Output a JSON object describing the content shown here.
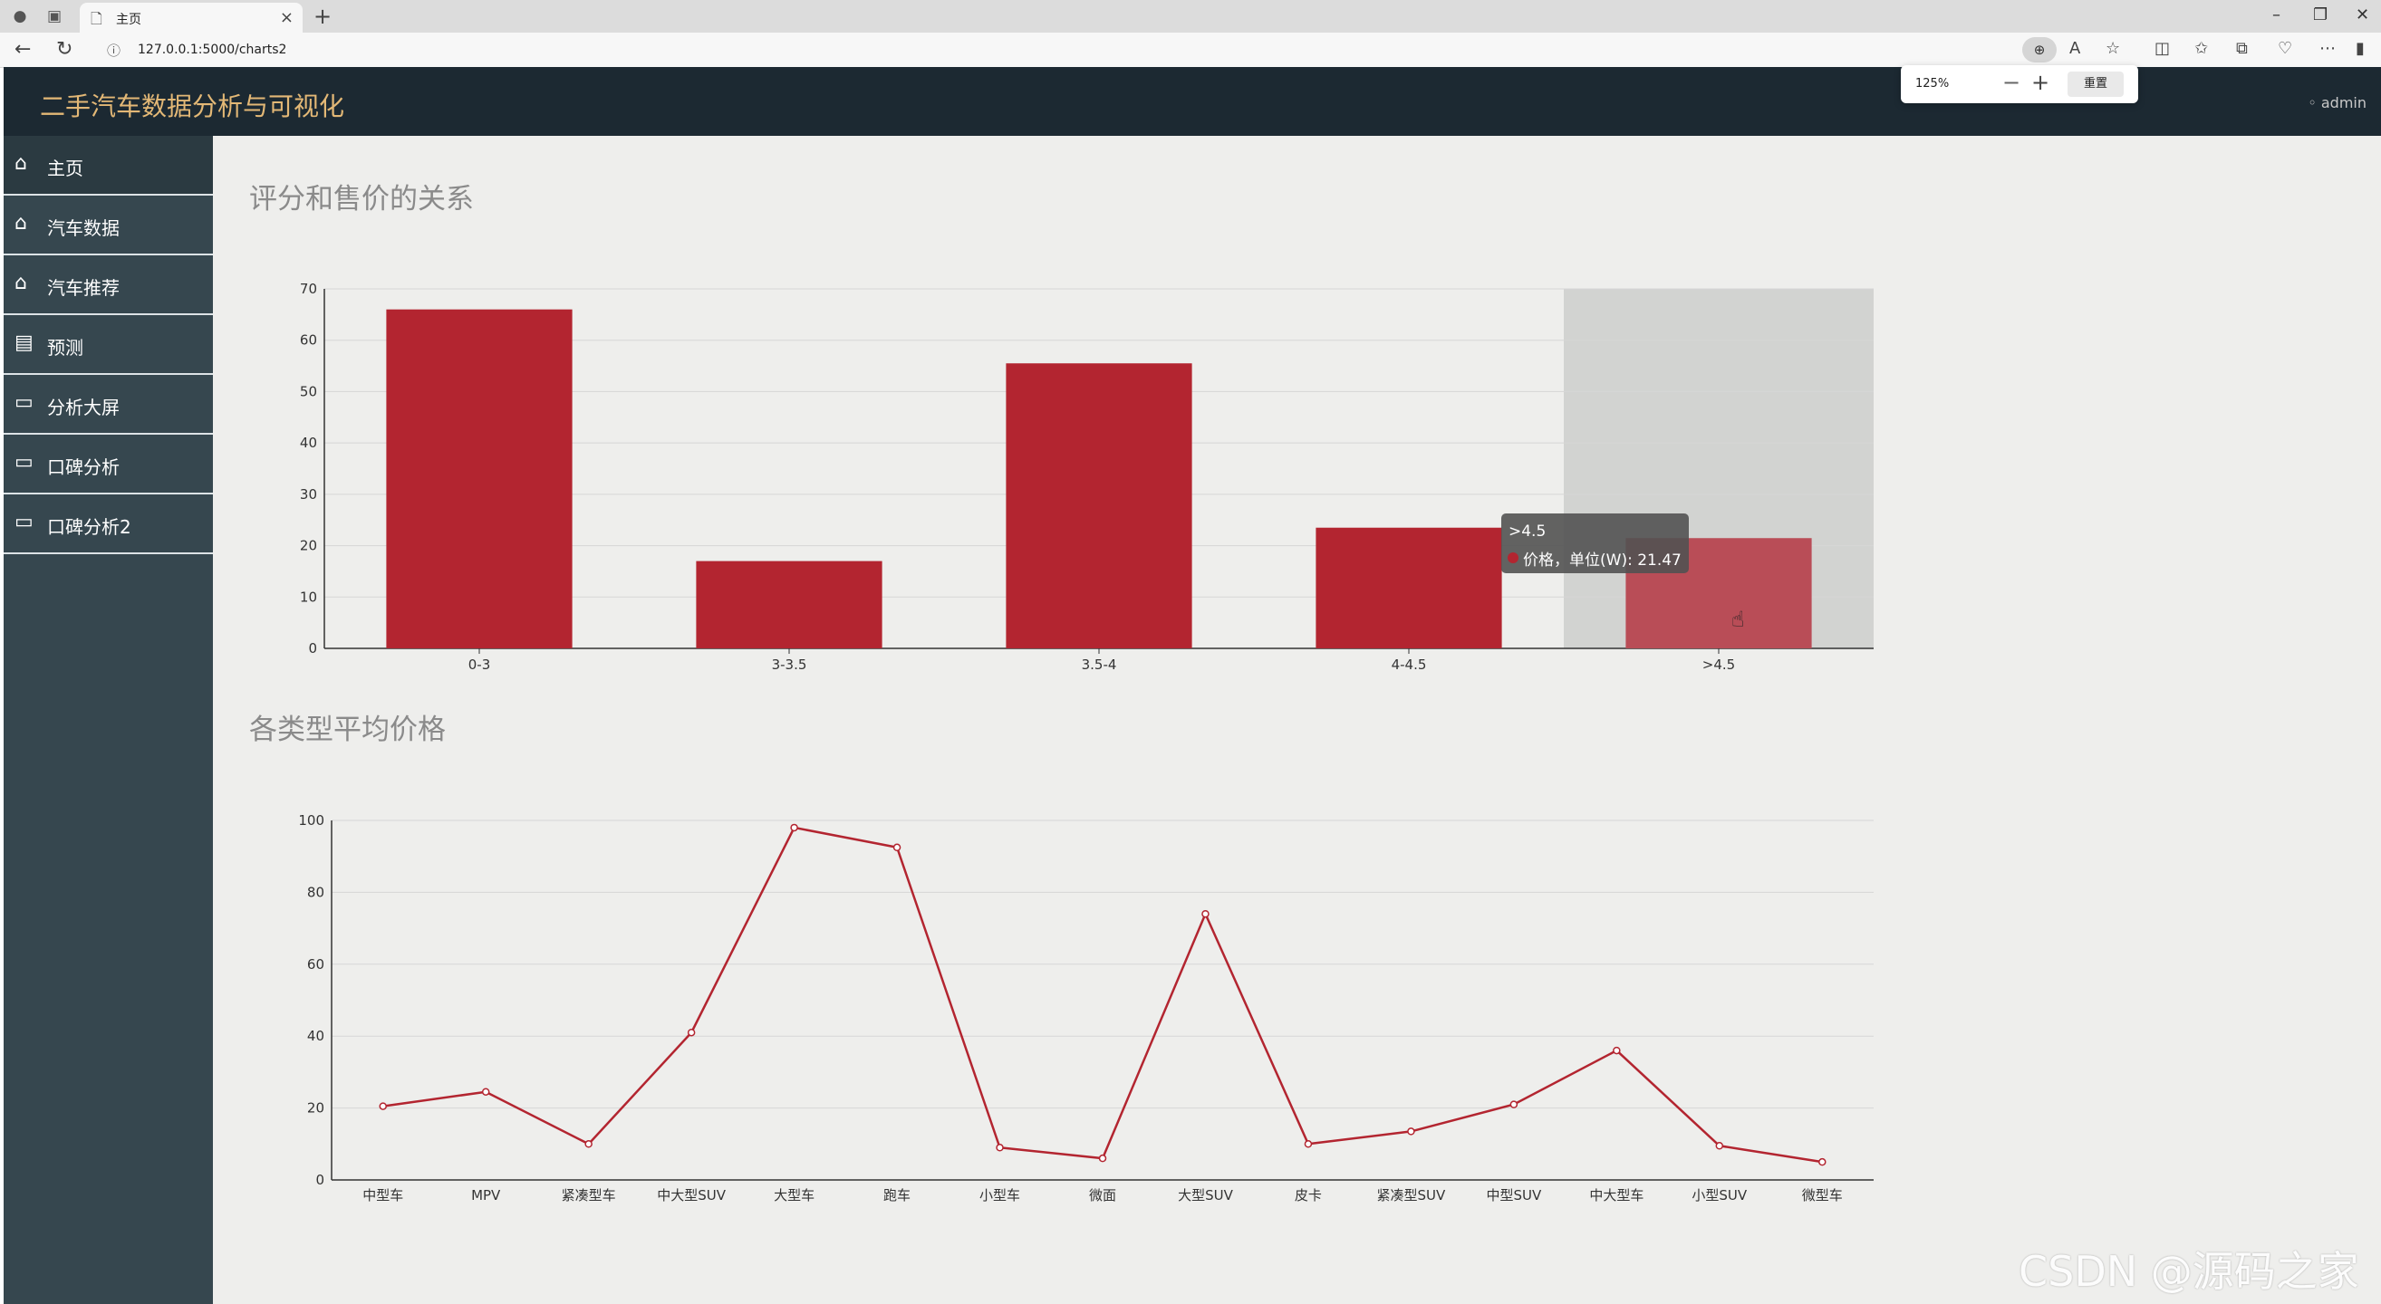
{
  "browser": {
    "tab_title": "主页",
    "url": "127.0.0.1:5000/charts2",
    "zoom_level": "125%",
    "zoom_reset_label": "重置"
  },
  "app": {
    "title": "二手汽车数据分析与可视化",
    "user": "◦ admin"
  },
  "sidebar": {
    "items": [
      {
        "label": "主页",
        "icon": "home-icon"
      },
      {
        "label": "汽车数据",
        "icon": "home-icon"
      },
      {
        "label": "汽车推荐",
        "icon": "home-icon"
      },
      {
        "label": "预测",
        "icon": "document-icon"
      },
      {
        "label": "分析大屏",
        "icon": "monitor-icon"
      },
      {
        "label": "口碑分析",
        "icon": "monitor-icon"
      },
      {
        "label": "口碑分析2",
        "icon": "monitor-icon"
      }
    ]
  },
  "section1": {
    "title": "评分和售价的关系"
  },
  "section2": {
    "title": "各类型平均价格"
  },
  "tooltip": {
    "category": ">4.5",
    "text": "价格，单位(W): 21.47"
  },
  "colors": {
    "bar": "#b32530",
    "bar_highlight": "#b94d57",
    "header": "#1c2932",
    "sidebar": "#36474f",
    "title_accent": "#e3b876"
  },
  "watermark": "CSDN @源码之家",
  "chart_data": [
    {
      "type": "bar",
      "categories": [
        "0-3",
        "3-3.5",
        "3.5-4",
        "4-4.5",
        ">4.5"
      ],
      "series": [
        {
          "name": "价格，单位(W)",
          "values": [
            66,
            17,
            55.5,
            23.5,
            21.47
          ]
        }
      ],
      "ylim": [
        0,
        70
      ],
      "yticks": [
        0,
        10,
        20,
        30,
        40,
        50,
        60,
        70
      ],
      "highlighted_category": ">4.5",
      "grid": true
    },
    {
      "type": "line",
      "categories": [
        "中型车",
        "MPV",
        "紧凑型车",
        "中大型SUV",
        "大型车",
        "跑车",
        "小型车",
        "微面",
        "大型SUV",
        "皮卡",
        "紧凑型SUV",
        "中型SUV",
        "中大型车",
        "小型SUV",
        "微型车"
      ],
      "series": [
        {
          "values": [
            20.5,
            24.5,
            10,
            41,
            98,
            92.5,
            9,
            6,
            74,
            10,
            13.5,
            21,
            36,
            9.5,
            5
          ]
        }
      ],
      "ylim": [
        0,
        100
      ],
      "yticks": [
        0,
        20,
        40,
        60,
        80,
        100
      ],
      "grid": true
    }
  ]
}
